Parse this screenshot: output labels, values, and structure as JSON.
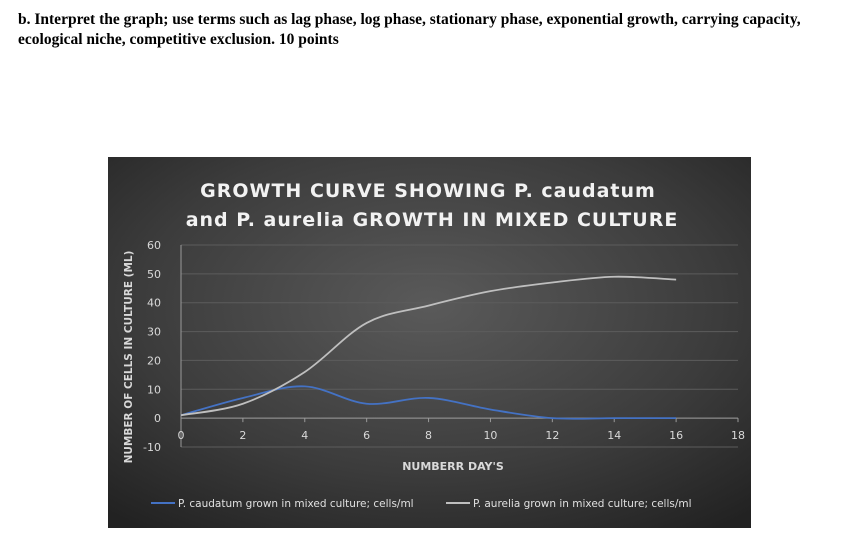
{
  "question": {
    "text": "b. Interpret the graph; use terms such as lag phase, log phase, stationary phase, exponential growth, carrying capacity, ecological niche, competitive exclusion. 10 points"
  },
  "chart_data": {
    "type": "line",
    "title_line1": "GROWTH CURVE  SHOWING P. caudatum",
    "title_line2": "and P. aurelia GROWTH IN MIXED CULTURE",
    "xlabel": "NUMBERR DAY'S",
    "ylabel": "NUMBER OF CELLS IN CULTURE (ML)",
    "xlim": [
      0,
      18
    ],
    "ylim": [
      -10,
      60
    ],
    "x_ticks": [
      0,
      2,
      4,
      6,
      8,
      10,
      12,
      14,
      16,
      18
    ],
    "y_ticks": [
      -10,
      0,
      10,
      20,
      30,
      40,
      50,
      60
    ],
    "grid": true,
    "legend_position": "bottom",
    "series": [
      {
        "name": "P. caudatum grown in mixed culture; cells/ml",
        "color": "#4472c4",
        "x": [
          0,
          2,
          4,
          6,
          8,
          10,
          12,
          14,
          16
        ],
        "values": [
          1,
          7,
          11,
          5,
          7,
          3,
          0,
          0,
          0
        ]
      },
      {
        "name": "P. aurelia grown in mixed culture; cells/ml",
        "color": "#bfbfbf",
        "x": [
          0,
          2,
          4,
          6,
          8,
          10,
          12,
          14,
          16
        ],
        "values": [
          1,
          5,
          16,
          33,
          39,
          44,
          47,
          49,
          48
        ]
      }
    ]
  }
}
